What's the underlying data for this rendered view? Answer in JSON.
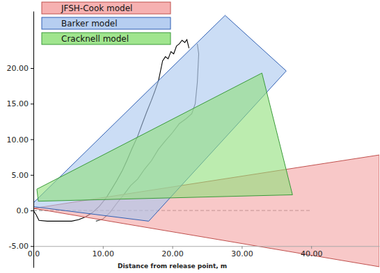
{
  "chart_data": {
    "type": "line",
    "x_label": "Distance from release point, m",
    "xlim": [
      0,
      49.8
    ],
    "ylim": [
      -8,
      28
    ],
    "xticks": [
      {
        "value": 0,
        "label": "0.0"
      },
      {
        "value": 10,
        "label": "10.00"
      },
      {
        "value": 20,
        "label": "20.00"
      },
      {
        "value": 30,
        "label": "30.00"
      },
      {
        "value": 40,
        "label": "40.00"
      }
    ],
    "yticks": [
      {
        "value": -5,
        "label": "-5.00"
      },
      {
        "value": 0,
        "label": "0.0"
      },
      {
        "value": 5,
        "label": "5.00"
      },
      {
        "value": 10,
        "label": "10.00"
      },
      {
        "value": 15,
        "label": "15.00"
      },
      {
        "value": 20,
        "label": "20.00"
      }
    ],
    "legend": "top-left",
    "series": [
      {
        "color": "#000000",
        "x": [
          0,
          0.4,
          0.8,
          2,
          4,
          5.5,
          6.5,
          7.5,
          8.5,
          9.5,
          10.5,
          11.2,
          12,
          12.8,
          13.5,
          14.2,
          15,
          15.6,
          16.3,
          17,
          17.5,
          18,
          18.3,
          18.6,
          19,
          19.4,
          19.8,
          20.2,
          20.6,
          21,
          21.4,
          21.8,
          22.1,
          22.4
        ],
        "values": [
          0,
          -0.6,
          -1.4,
          -1.5,
          -1.5,
          -1.5,
          -1.3,
          -0.9,
          -0.3,
          0.6,
          1.8,
          2.9,
          4.2,
          5.6,
          7.1,
          8.7,
          10.4,
          12.0,
          13.8,
          15.5,
          16.8,
          18.2,
          19.6,
          21.0,
          21.6,
          21.3,
          22.3,
          22.0,
          23.1,
          23.4,
          23.9,
          23.6,
          24.0,
          22.8
        ]
      },
      {
        "color": "#444444",
        "x": [
          9,
          10,
          11,
          12,
          13,
          14,
          15,
          16,
          17,
          18,
          19,
          20,
          21,
          22,
          22.8,
          23.3,
          23.6,
          23.8,
          23.6
        ],
        "values": [
          -1.5,
          -1.2,
          -0.3,
          1.0,
          2.2,
          3.5,
          4.4,
          5.8,
          7.0,
          8.6,
          9.8,
          10.9,
          12.2,
          12.9,
          13.6,
          15.0,
          18.0,
          22.0,
          23.4
        ]
      }
    ],
    "baseline": {
      "x": [
        0,
        40
      ],
      "y": [
        0,
        0
      ]
    },
    "regions": [
      {
        "name": "JFSH-Cook model",
        "color": "#f4a3a3",
        "x": [
          0,
          49.8,
          49.8
        ],
        "y": [
          0.3,
          7.8,
          -7.9
        ]
      },
      {
        "name": "Barker model",
        "color": "#a9c6ef",
        "x": [
          -0.5,
          27.6,
          36.4,
          16.6
        ],
        "y": [
          0.6,
          27.4,
          19.6,
          -1.5
        ]
      },
      {
        "name": "Cracknell model",
        "color": "#8fe07a",
        "x": [
          0.5,
          32.9,
          37.3,
          0.7
        ],
        "y": [
          3.0,
          19.3,
          2.2,
          1.3
        ]
      }
    ]
  }
}
